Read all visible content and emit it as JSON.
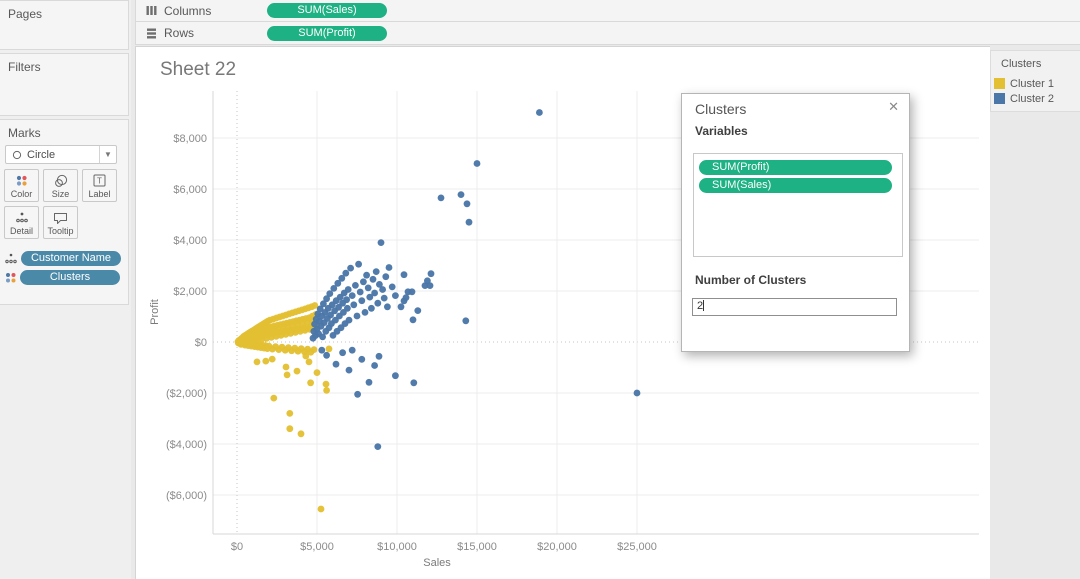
{
  "shelves": {
    "columns": {
      "label": "Columns",
      "pill": "SUM(Sales)"
    },
    "rows": {
      "label": "Rows",
      "pill": "SUM(Profit)"
    }
  },
  "sidebar": {
    "pages_label": "Pages",
    "filters_label": "Filters",
    "marks": {
      "title": "Marks",
      "mark_type": "Circle",
      "buttons": {
        "color": "Color",
        "size": "Size",
        "label": "Label",
        "detail": "Detail",
        "tooltip": "Tooltip"
      },
      "pills": [
        {
          "label": "Customer Name"
        },
        {
          "label": "Clusters"
        }
      ]
    }
  },
  "sheet": {
    "title": "Sheet 22"
  },
  "legend": {
    "title": "Clusters",
    "items": [
      {
        "label": "Cluster 1",
        "color": "#e3c032"
      },
      {
        "label": "Cluster 2",
        "color": "#4a76a8"
      }
    ]
  },
  "dialog": {
    "title": "Clusters",
    "close_glyph": "✕",
    "variables_label": "Variables",
    "variable_pills": [
      "SUM(Profit)",
      "SUM(Sales)"
    ],
    "number_label": "Number of Clusters",
    "number_value": "2"
  },
  "colors": {
    "measure_pill_green": "#1eb183",
    "dimension_pill_blue": "#4a89a8",
    "cluster1_yellow": "#e3c032",
    "cluster2_blue": "#4a76a8"
  },
  "chart_data": {
    "type": "scatter",
    "title": "Sheet 22",
    "xlabel": "Sales",
    "ylabel": "Profit",
    "xlim": [
      -1200,
      26500
    ],
    "ylim": [
      -7600,
      9850
    ],
    "x_ticks": [
      0,
      5000,
      10000,
      15000,
      20000,
      25000
    ],
    "x_tick_labels": [
      "$0",
      "$5,000",
      "$10,000",
      "$15,000",
      "$20,000",
      "$25,000"
    ],
    "y_ticks": [
      8000,
      6000,
      4000,
      2000,
      0,
      -2000,
      -4000,
      -6000
    ],
    "y_tick_labels": [
      "$8,000",
      "$6,000",
      "$4,000",
      "$2,000",
      "$0",
      "($2,000)",
      "($4,000)",
      "($6,000)"
    ],
    "grid": true,
    "legend_position": "top-right-panel",
    "series": [
      {
        "name": "Cluster 1",
        "color": "#e3c032",
        "points": [
          [
            60,
            10
          ],
          [
            90,
            -40
          ],
          [
            120,
            60
          ],
          [
            160,
            20
          ],
          [
            190,
            -60
          ],
          [
            210,
            90
          ],
          [
            230,
            10
          ],
          [
            250,
            -90
          ],
          [
            270,
            130
          ],
          [
            300,
            40
          ],
          [
            320,
            -30
          ],
          [
            350,
            170
          ],
          [
            370,
            60
          ],
          [
            400,
            -80
          ],
          [
            420,
            220
          ],
          [
            450,
            110
          ],
          [
            470,
            10
          ],
          [
            500,
            -120
          ],
          [
            520,
            260
          ],
          [
            550,
            140
          ],
          [
            570,
            40
          ],
          [
            600,
            -60
          ],
          [
            620,
            300
          ],
          [
            650,
            170
          ],
          [
            670,
            60
          ],
          [
            700,
            -140
          ],
          [
            720,
            340
          ],
          [
            750,
            200
          ],
          [
            770,
            80
          ],
          [
            800,
            -40
          ],
          [
            820,
            380
          ],
          [
            850,
            230
          ],
          [
            870,
            100
          ],
          [
            900,
            -160
          ],
          [
            920,
            420
          ],
          [
            950,
            260
          ],
          [
            970,
            120
          ],
          [
            1000,
            -60
          ],
          [
            1030,
            460
          ],
          [
            1060,
            290
          ],
          [
            1080,
            140
          ],
          [
            1100,
            -180
          ],
          [
            1130,
            500
          ],
          [
            1160,
            320
          ],
          [
            1180,
            160
          ],
          [
            1200,
            -80
          ],
          [
            1230,
            540
          ],
          [
            1260,
            350
          ],
          [
            1280,
            180
          ],
          [
            1300,
            -200
          ],
          [
            1330,
            580
          ],
          [
            1360,
            380
          ],
          [
            1380,
            200
          ],
          [
            1400,
            -100
          ],
          [
            1430,
            620
          ],
          [
            1460,
            410
          ],
          [
            1480,
            220
          ],
          [
            1500,
            -220
          ],
          [
            1530,
            660
          ],
          [
            1560,
            440
          ],
          [
            1580,
            240
          ],
          [
            1600,
            -120
          ],
          [
            1630,
            700
          ],
          [
            1660,
            470
          ],
          [
            1680,
            260
          ],
          [
            1700,
            -240
          ],
          [
            1730,
            740
          ],
          [
            1760,
            500
          ],
          [
            1780,
            280
          ],
          [
            1800,
            -140
          ],
          [
            1830,
            780
          ],
          [
            1860,
            530
          ],
          [
            1880,
            300
          ],
          [
            1900,
            -260
          ],
          [
            1930,
            820
          ],
          [
            1960,
            560
          ],
          [
            1980,
            320
          ],
          [
            2000,
            -160
          ],
          [
            2060,
            860
          ],
          [
            2110,
            590
          ],
          [
            2160,
            340
          ],
          [
            2210,
            -280
          ],
          [
            2260,
            900
          ],
          [
            2310,
            620
          ],
          [
            2360,
            360
          ],
          [
            2410,
            -180
          ],
          [
            2460,
            940
          ],
          [
            2510,
            650
          ],
          [
            2560,
            380
          ],
          [
            2610,
            -300
          ],
          [
            2660,
            980
          ],
          [
            2710,
            680
          ],
          [
            2760,
            400
          ],
          [
            2810,
            -200
          ],
          [
            2860,
            1020
          ],
          [
            2910,
            710
          ],
          [
            2960,
            420
          ],
          [
            3010,
            -320
          ],
          [
            3060,
            1060
          ],
          [
            3110,
            740
          ],
          [
            3160,
            440
          ],
          [
            3210,
            -220
          ],
          [
            3260,
            1100
          ],
          [
            3310,
            770
          ],
          [
            3360,
            460
          ],
          [
            3410,
            -340
          ],
          [
            3460,
            1140
          ],
          [
            3510,
            800
          ],
          [
            3560,
            480
          ],
          [
            3610,
            -240
          ],
          [
            3660,
            1180
          ],
          [
            3710,
            830
          ],
          [
            3760,
            500
          ],
          [
            3810,
            -360
          ],
          [
            3860,
            1220
          ],
          [
            3910,
            860
          ],
          [
            3960,
            520
          ],
          [
            4010,
            -260
          ],
          [
            4060,
            1260
          ],
          [
            4110,
            890
          ],
          [
            4160,
            540
          ],
          [
            4210,
            -380
          ],
          [
            4260,
            1300
          ],
          [
            4310,
            920
          ],
          [
            4360,
            560
          ],
          [
            4410,
            -280
          ],
          [
            4460,
            1340
          ],
          [
            4510,
            950
          ],
          [
            4560,
            580
          ],
          [
            4610,
            -400
          ],
          [
            4660,
            1380
          ],
          [
            4710,
            1010
          ],
          [
            4760,
            620
          ],
          [
            4810,
            -300
          ],
          [
            4860,
            1430
          ],
          [
            4910,
            1080
          ],
          [
            4960,
            680
          ],
          [
            500,
            60
          ],
          [
            800,
            150
          ],
          [
            1100,
            250
          ],
          [
            1400,
            300
          ],
          [
            1700,
            380
          ],
          [
            2000,
            430
          ],
          [
            2300,
            480
          ],
          [
            2600,
            520
          ],
          [
            2900,
            560
          ],
          [
            3200,
            600
          ],
          [
            3500,
            640
          ],
          [
            3800,
            680
          ],
          [
            4100,
            720
          ],
          [
            4400,
            760
          ],
          [
            4700,
            800
          ],
          [
            650,
            -20
          ],
          [
            950,
            20
          ],
          [
            1250,
            60
          ],
          [
            1550,
            100
          ],
          [
            1850,
            140
          ],
          [
            2150,
            180
          ],
          [
            2450,
            220
          ],
          [
            2750,
            260
          ],
          [
            3050,
            300
          ],
          [
            3350,
            340
          ],
          [
            3650,
            380
          ],
          [
            3950,
            420
          ],
          [
            4250,
            460
          ],
          [
            4550,
            500
          ],
          [
            4850,
            540
          ],
          [
            1250,
            -780
          ],
          [
            1800,
            -750
          ],
          [
            2200,
            -670
          ],
          [
            3060,
            -980
          ],
          [
            3130,
            -1290
          ],
          [
            3750,
            -1140
          ],
          [
            4300,
            -550
          ],
          [
            4500,
            -780
          ],
          [
            5000,
            -1200
          ],
          [
            5560,
            -1650
          ],
          [
            5750,
            -270
          ],
          [
            4600,
            -1600
          ],
          [
            2300,
            -2200
          ],
          [
            3300,
            -2800
          ],
          [
            3300,
            -3400
          ],
          [
            4000,
            -3600
          ],
          [
            5600,
            -1900
          ],
          [
            5250,
            -6550
          ]
        ]
      },
      {
        "name": "Cluster 2",
        "color": "#4a76a8",
        "points": [
          [
            4750,
            150
          ],
          [
            4800,
            420
          ],
          [
            4850,
            700
          ],
          [
            4900,
            250
          ],
          [
            4950,
            900
          ],
          [
            5000,
            500
          ],
          [
            5050,
            1100
          ],
          [
            5100,
            320
          ],
          [
            5150,
            820
          ],
          [
            5200,
            1300
          ],
          [
            5250,
            620
          ],
          [
            5300,
            1020
          ],
          [
            5350,
            200
          ],
          [
            5400,
            1500
          ],
          [
            5450,
            760
          ],
          [
            5500,
            1160
          ],
          [
            5550,
            420
          ],
          [
            5600,
            1700
          ],
          [
            5650,
            920
          ],
          [
            5700,
            1320
          ],
          [
            5750,
            560
          ],
          [
            5800,
            1900
          ],
          [
            5850,
            1060
          ],
          [
            5900,
            720
          ],
          [
            5950,
            1460
          ],
          [
            6000,
            260
          ],
          [
            6050,
            2100
          ],
          [
            6100,
            1220
          ],
          [
            6150,
            860
          ],
          [
            6200,
            1620
          ],
          [
            6250,
            420
          ],
          [
            6300,
            2300
          ],
          [
            6350,
            1360
          ],
          [
            6400,
            1020
          ],
          [
            6450,
            1760
          ],
          [
            6500,
            560
          ],
          [
            6550,
            2500
          ],
          [
            6600,
            1520
          ],
          [
            6650,
            1160
          ],
          [
            6700,
            1920
          ],
          [
            6750,
            720
          ],
          [
            6800,
            2700
          ],
          [
            6850,
            1660
          ],
          [
            6900,
            1320
          ],
          [
            6950,
            2060
          ],
          [
            7000,
            860
          ],
          [
            7100,
            2900
          ],
          [
            7200,
            1820
          ],
          [
            7300,
            1460
          ],
          [
            7400,
            2220
          ],
          [
            7500,
            1020
          ],
          [
            7600,
            3050
          ],
          [
            7700,
            1960
          ],
          [
            7800,
            1620
          ],
          [
            7900,
            2360
          ],
          [
            8000,
            1160
          ],
          [
            8100,
            2620
          ],
          [
            8200,
            2120
          ],
          [
            8300,
            1760
          ],
          [
            8400,
            1320
          ],
          [
            8500,
            2460
          ],
          [
            8600,
            1920
          ],
          [
            8700,
            2760
          ],
          [
            8800,
            1520
          ],
          [
            8900,
            2260
          ],
          [
            9100,
            2060
          ],
          [
            9200,
            1720
          ],
          [
            9300,
            2560
          ],
          [
            9400,
            1380
          ],
          [
            9500,
            2920
          ],
          [
            9700,
            2160
          ],
          [
            9900,
            1820
          ],
          [
            10250,
            1380
          ],
          [
            10440,
            1610
          ],
          [
            10560,
            1740
          ],
          [
            10690,
            1970
          ],
          [
            10940,
            1970
          ],
          [
            11000,
            870
          ],
          [
            11300,
            1230
          ],
          [
            11750,
            2210
          ],
          [
            11900,
            2400
          ],
          [
            12060,
            2210
          ],
          [
            12125,
            2680
          ],
          [
            10437,
            2640
          ],
          [
            14300,
            830
          ],
          [
            9000,
            3900
          ],
          [
            12750,
            5650
          ],
          [
            14000,
            5780
          ],
          [
            14375,
            5420
          ],
          [
            14500,
            4700
          ],
          [
            15000,
            7000
          ],
          [
            18900,
            9000
          ],
          [
            5300,
            -320
          ],
          [
            5600,
            -520
          ],
          [
            6190,
            -870
          ],
          [
            6600,
            -420
          ],
          [
            7000,
            -1100
          ],
          [
            7200,
            -320
          ],
          [
            7800,
            -680
          ],
          [
            8250,
            -1580
          ],
          [
            8600,
            -920
          ],
          [
            8875,
            -560
          ],
          [
            7540,
            -2050
          ],
          [
            9900,
            -1320
          ],
          [
            11050,
            -1600
          ],
          [
            8800,
            -4100
          ],
          [
            25000,
            -2000
          ]
        ]
      }
    ]
  }
}
